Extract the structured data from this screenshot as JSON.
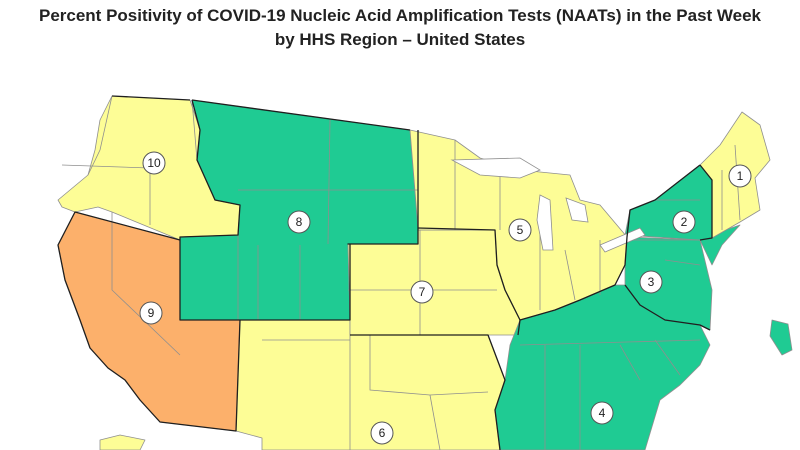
{
  "title": {
    "line1": "Percent Positivity of COVID-19 Nucleic Acid Amplification Tests (NAATs) in the Past Week",
    "line2": "by HHS Region – United States"
  },
  "colors": {
    "yellow": "#fdfd96",
    "green": "#1fcb93",
    "orange": "#fcb06b",
    "border": "#1f1f1f",
    "state_line": "#8f8f8f"
  },
  "regions": [
    {
      "id": "1",
      "label": "1",
      "color": "#fdfd96"
    },
    {
      "id": "2",
      "label": "2",
      "color": "#1fcb93"
    },
    {
      "id": "3",
      "label": "3",
      "color": "#1fcb93"
    },
    {
      "id": "4",
      "label": "4",
      "color": "#1fcb93"
    },
    {
      "id": "5",
      "label": "5",
      "color": "#fdfd96"
    },
    {
      "id": "6",
      "label": "6",
      "color": "#fdfd96"
    },
    {
      "id": "7",
      "label": "7",
      "color": "#fdfd96"
    },
    {
      "id": "8",
      "label": "8",
      "color": "#1fcb93"
    },
    {
      "id": "9",
      "label": "9",
      "color": "#fcb06b"
    },
    {
      "id": "10",
      "label": "10",
      "color": "#fdfd96"
    }
  ]
}
